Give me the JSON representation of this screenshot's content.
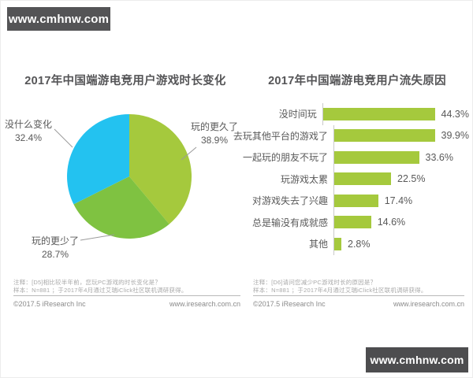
{
  "banners": {
    "top": "www.cmhnw.com",
    "bottom": "www.cmhnw.com"
  },
  "left_chart": {
    "title": "2017年中国端游电竞用户游戏时长变化",
    "note_line1": "注释：[D5]相比较半年前，您玩PC游戏的时长变化是？",
    "note_line2": "样本：N=881 ；于2017年4月通过艾瑞iClick社区联机调研获得。",
    "copyright": "©2017.5 iResearch Inc",
    "website": "www.iresearch.com.cn"
  },
  "right_chart": {
    "title": "2017年中国端游电竞用户流失原因",
    "note_line1": "注释：[D6]请问您减少PC游戏时长的原因是？",
    "note_line2": "样本：N=881 ；于2017年4月通过艾瑞iClick社区联机调研获得。",
    "copyright": "©2017.5 iResearch Inc",
    "website": "www.iresearch.com.cn"
  },
  "chart_data": [
    {
      "type": "pie",
      "title": "2017年中国端游电竞用户游戏时长变化",
      "start_angle_deg": 0,
      "direction": "clockwise",
      "slices": [
        {
          "label": "玩的更久了",
          "value": 38.9,
          "color": "#a5c93d"
        },
        {
          "label": "玩的更少了",
          "value": 28.7,
          "color": "#7fc241"
        },
        {
          "label": "没什么变化",
          "value": 32.4,
          "color": "#23c2f0"
        }
      ]
    },
    {
      "type": "bar",
      "orientation": "horizontal",
      "title": "2017年中国端游电竞用户流失原因",
      "categories": [
        "没时间玩",
        "去玩其他平台的游戏了",
        "一起玩的朋友不玩了",
        "玩游戏太累",
        "对游戏失去了兴趣",
        "总是输没有成就感",
        "其他"
      ],
      "values": [
        44.3,
        39.9,
        33.6,
        22.5,
        17.4,
        14.6,
        2.8
      ],
      "value_suffix": "%",
      "bar_color": "#a5c93d",
      "axis_color": "#c9c9c9",
      "xlim": [
        0,
        50
      ],
      "grid": false,
      "legend": false
    }
  ]
}
